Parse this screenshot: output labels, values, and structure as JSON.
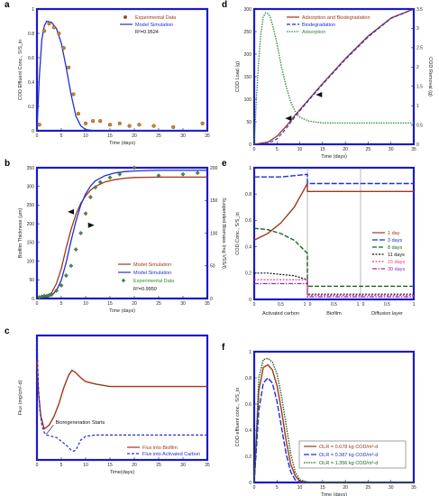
{
  "colors": {
    "frame": "#1a1acc",
    "red": "#a0371a",
    "blue": "#1f2fd6",
    "green": "#2f8a3a",
    "black": "#111111",
    "purple": "#9b2bb5",
    "pink": "#e0458a",
    "dkgreen": "#1f5f1f"
  },
  "chart_data": [
    {
      "id": "a",
      "type": "scatter+line",
      "panel_label": "a",
      "xlabel": "Time (days)",
      "ylabel": "COD Effluent Conc., S/S_in",
      "xlim": [
        0,
        35
      ],
      "ylim": [
        0,
        1
      ],
      "xticks": [
        0,
        5,
        10,
        15,
        20,
        25,
        30,
        35
      ],
      "yticks": [
        0,
        0.2,
        0.4,
        0.6,
        0.8,
        1
      ],
      "legend": [
        "Experimental Data",
        "Model Simulation",
        "R²=0.9524"
      ],
      "series": [
        {
          "name": "Experimental Data",
          "style": "points",
          "x": [
            0.5,
            1.5,
            2.5,
            3.5,
            4.5,
            5.5,
            6.5,
            7.5,
            8.5,
            10,
            11.5,
            13,
            15,
            17,
            19,
            21,
            24,
            28,
            34
          ],
          "y": [
            0.05,
            0.82,
            0.88,
            0.85,
            0.8,
            0.68,
            0.52,
            0.3,
            0.14,
            0.06,
            0.08,
            0.08,
            0.05,
            0.06,
            0.04,
            0.05,
            0.04,
            0.03,
            0.06
          ]
        },
        {
          "name": "Model Simulation",
          "style": "line",
          "x": [
            0,
            0.5,
            1,
            1.5,
            2,
            3,
            4,
            5,
            6,
            7,
            8,
            9,
            10,
            12,
            15,
            20,
            25,
            30,
            35
          ],
          "y": [
            0,
            0.45,
            0.75,
            0.86,
            0.9,
            0.89,
            0.84,
            0.72,
            0.52,
            0.3,
            0.12,
            0.04,
            0.01,
            0,
            0,
            0,
            0,
            0,
            0
          ]
        }
      ]
    },
    {
      "id": "b",
      "type": "scatter+line",
      "panel_label": "b",
      "xlabel": "Time (days)",
      "ylabel": "Biofilm Thickness (μm)",
      "ylabel_right": "Suspended Biomass (mg VSS/l)",
      "xlim": [
        0,
        35
      ],
      "ylim": [
        0,
        350
      ],
      "ylim_right": [
        0,
        200
      ],
      "xticks": [
        0,
        5,
        10,
        15,
        20,
        25,
        30,
        35
      ],
      "yticks": [
        0,
        50,
        100,
        150,
        200,
        250,
        300,
        350
      ],
      "yticks_right": [
        0,
        50,
        100,
        150,
        200
      ],
      "legend": [
        "Model Simulation",
        "Model Simulation",
        "Experimental Data",
        "R²=0.9950"
      ],
      "series": [
        {
          "name": "Model Simulation",
          "axis": "left",
          "style": "line",
          "x": [
            0,
            2,
            3,
            4,
            5,
            6,
            7,
            8,
            9,
            10,
            11,
            12,
            14,
            16,
            18,
            20,
            25,
            30,
            35
          ],
          "y": [
            0,
            5,
            15,
            40,
            80,
            135,
            185,
            225,
            255,
            275,
            290,
            300,
            312,
            318,
            322,
            324,
            325,
            325,
            325
          ]
        },
        {
          "name": "Model Simulation",
          "axis": "right",
          "style": "line",
          "x": [
            0,
            2,
            3,
            4,
            5,
            6,
            7,
            8,
            9,
            10,
            11,
            12,
            14,
            16,
            18,
            20,
            25,
            30,
            35
          ],
          "y": [
            0,
            2,
            5,
            12,
            28,
            55,
            88,
            118,
            143,
            160,
            172,
            180,
            188,
            192,
            194,
            195,
            196,
            196,
            196
          ]
        },
        {
          "name": "Experimental Data",
          "axis": "right",
          "style": "points",
          "x": [
            0.5,
            1,
            1.5,
            2,
            2.5,
            3,
            4,
            5,
            6,
            7,
            8,
            9,
            10,
            11,
            12,
            13,
            15,
            17,
            20,
            25,
            30,
            33
          ],
          "y": [
            2,
            3,
            4,
            4,
            5,
            6,
            12,
            20,
            35,
            50,
            75,
            100,
            130,
            155,
            170,
            178,
            185,
            190,
            200,
            188,
            190,
            192
          ]
        }
      ]
    },
    {
      "id": "c",
      "type": "line",
      "panel_label": "c",
      "xlabel": "Time(days)",
      "ylabel": "Flux (mg/cm²·d)",
      "xlim": [
        0,
        35
      ],
      "ylim": [
        -0.2,
        0.8
      ],
      "xticks": [
        0,
        5,
        10,
        15,
        20,
        25,
        30,
        35
      ],
      "legend": [
        "Flux into Biofilm",
        "Flux into Activated Carbon"
      ],
      "annotation": "Bioregeneration Starts",
      "series": [
        {
          "name": "Flux into Biofilm",
          "x": [
            0,
            0.3,
            0.8,
            1.5,
            2.5,
            3.5,
            4.5,
            5.5,
            6.5,
            7.2,
            8,
            9,
            10,
            12,
            15,
            20,
            25,
            30,
            35
          ],
          "y": [
            0.6,
            0.35,
            0.15,
            0.05,
            0.08,
            0.15,
            0.25,
            0.38,
            0.48,
            0.52,
            0.5,
            0.46,
            0.43,
            0.41,
            0.39,
            0.39,
            0.39,
            0.39,
            0.39
          ]
        },
        {
          "name": "Flux into Activated Carbon",
          "x": [
            0,
            0.3,
            0.6,
            1,
            1.5,
            2,
            3,
            4,
            5,
            6,
            7,
            7.5,
            8,
            8.5,
            9,
            10,
            12,
            15,
            20,
            25,
            30,
            35
          ],
          "y": [
            0.75,
            0.4,
            0.2,
            0.08,
            0.02,
            0,
            -0.01,
            -0.02,
            -0.05,
            -0.08,
            -0.12,
            -0.13,
            -0.12,
            -0.08,
            -0.04,
            -0.01,
            0,
            0,
            0,
            0,
            0,
            0
          ]
        }
      ]
    },
    {
      "id": "d",
      "type": "line",
      "panel_label": "d",
      "xlabel": "Time (days)",
      "ylabel": "COD Load (g)",
      "ylabel_right": "COD Removal (g)",
      "xlim": [
        0,
        35
      ],
      "ylim": [
        0,
        300
      ],
      "ylim_right": [
        0,
        3.5
      ],
      "xticks": [
        0,
        5,
        10,
        15,
        20,
        25,
        30,
        35
      ],
      "yticks": [
        0,
        50,
        100,
        150,
        200,
        250,
        300
      ],
      "yticks_right": [
        0,
        0.5,
        1,
        1.5,
        2,
        2.5,
        3,
        3.5
      ],
      "legend": [
        "Adsorption and Biodegradation",
        "Biodegradation",
        "Adsorption"
      ],
      "series": [
        {
          "name": "Adsorption and Biodegradation",
          "axis": "left",
          "x": [
            0,
            3,
            5,
            7,
            9,
            12,
            15,
            20,
            25,
            30,
            35
          ],
          "y": [
            0,
            5,
            18,
            40,
            65,
            100,
            135,
            190,
            240,
            280,
            300
          ]
        },
        {
          "name": "Biodegradation",
          "axis": "left",
          "x": [
            0,
            3,
            5,
            7,
            9,
            12,
            15,
            20,
            25,
            30,
            35
          ],
          "y": [
            0,
            2,
            12,
            35,
            62,
            98,
            133,
            188,
            238,
            279,
            300
          ]
        },
        {
          "name": "Adsorption",
          "axis": "right",
          "x": [
            0,
            0.5,
            1,
            1.5,
            2,
            2.5,
            3,
            3.5,
            4,
            5,
            6,
            7,
            8,
            9,
            10,
            12,
            15,
            20,
            25,
            30,
            35
          ],
          "y": [
            0,
            1.2,
            2.2,
            2.9,
            3.3,
            3.4,
            3.38,
            3.3,
            3.1,
            2.6,
            2.0,
            1.5,
            1.1,
            0.85,
            0.7,
            0.6,
            0.55,
            0.55,
            0.55,
            0.55,
            0.55
          ]
        }
      ]
    },
    {
      "id": "e",
      "type": "line",
      "panel_label": "e",
      "ylabel": "COD Conc., S/S_in",
      "ylim": [
        0,
        1
      ],
      "yticks": [
        0,
        0.2,
        0.4,
        0.6,
        0.8,
        1
      ],
      "segment_labels": [
        "Activated carbon",
        "Biofilm",
        "Diffusion layer"
      ],
      "segment_ticks": [
        "0",
        "0.5",
        "1",
        "0",
        "0.5",
        "1",
        "0",
        "0.5",
        "1"
      ],
      "legend": [
        "1 day",
        "3 days",
        "8 days",
        "11 days",
        "15 days",
        "30 days"
      ],
      "series": [
        {
          "name": "1 day",
          "y_left": [
            0.45,
            0.5,
            0.58,
            0.7,
            0.88
          ],
          "y_right": 0.82
        },
        {
          "name": "3 days",
          "y_left": [
            0.93,
            0.93,
            0.93,
            0.94,
            0.95
          ],
          "y_right": 0.88
        },
        {
          "name": "8 days",
          "y_left": [
            0.54,
            0.53,
            0.5,
            0.45,
            0.35
          ],
          "y_right": 0.1
        },
        {
          "name": "11 days",
          "y_left": [
            0.2,
            0.2,
            0.19,
            0.18,
            0.15
          ],
          "y_right": 0.04
        },
        {
          "name": "15 days",
          "y_left": [
            0.15,
            0.15,
            0.15,
            0.15,
            0.15
          ],
          "y_right": 0.03
        },
        {
          "name": "30 days",
          "y_left": [
            0.12,
            0.12,
            0.12,
            0.12,
            0.12
          ],
          "y_right": 0.02
        }
      ]
    },
    {
      "id": "f",
      "type": "line",
      "panel_label": "f",
      "xlabel": "Time (days)",
      "ylabel": "COD effluent conc., S/S_in",
      "xlim": [
        0,
        35
      ],
      "ylim": [
        0,
        1
      ],
      "xticks": [
        0,
        5,
        10,
        15,
        20,
        25,
        30,
        35
      ],
      "yticks": [
        0,
        0.2,
        0.4,
        0.6,
        0.8,
        1
      ],
      "legend": [
        "OLR = 0.678 kg COD/m³-d",
        "OLR = 0.387 kg COD/m³-d",
        "OLR = 1.356 kg COD/m³-d"
      ],
      "series": [
        {
          "name": "OLR = 0.678 kg COD/m³-d",
          "x": [
            0,
            1,
            2,
            3,
            4,
            5,
            6,
            7,
            8,
            9,
            10,
            12,
            15,
            35
          ],
          "y": [
            0,
            0.7,
            0.88,
            0.9,
            0.86,
            0.74,
            0.55,
            0.32,
            0.14,
            0.05,
            0.01,
            0,
            0,
            0
          ]
        },
        {
          "name": "OLR = 0.387 kg COD/m³-d",
          "x": [
            0,
            1,
            2,
            3,
            4,
            5,
            6,
            7,
            8,
            9,
            10,
            12,
            15,
            35
          ],
          "y": [
            0,
            0.55,
            0.76,
            0.8,
            0.76,
            0.62,
            0.42,
            0.22,
            0.08,
            0.02,
            0,
            0,
            0,
            0
          ]
        },
        {
          "name": "OLR = 1.356 kg COD/m³-d",
          "x": [
            0,
            1,
            2,
            3,
            4,
            5,
            6,
            7,
            8,
            9,
            10,
            12,
            15,
            35
          ],
          "y": [
            0,
            0.8,
            0.94,
            0.95,
            0.92,
            0.83,
            0.66,
            0.44,
            0.22,
            0.08,
            0.02,
            0,
            0,
            0
          ]
        }
      ]
    }
  ]
}
